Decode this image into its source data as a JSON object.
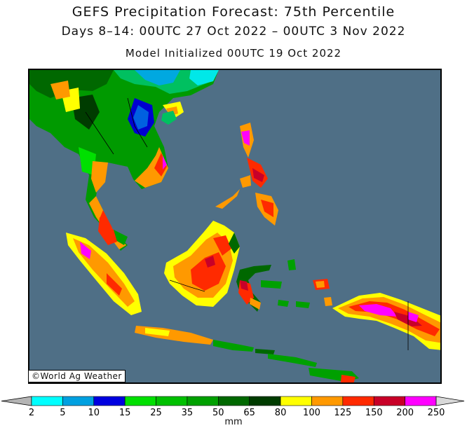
{
  "title": "GEFS Precipitation Forecast: 75th Percentile",
  "subtitle": "Days 8–14: 00UTC 27 Oct 2022 – 00UTC 3 Nov 2022",
  "init_line": "Model Initialized 00UTC 19 Oct 2022",
  "credit": "©World Ag Weather",
  "colorbar": {
    "unit": "mm",
    "labels": [
      "2",
      "5",
      "10",
      "15",
      "25",
      "35",
      "50",
      "65",
      "80",
      "100",
      "125",
      "150",
      "200",
      "250"
    ],
    "colors": [
      "#00ffff",
      "#00a0e0",
      "#0000e0",
      "#00e000",
      "#00c000",
      "#00a000",
      "#006800",
      "#003c00",
      "#ffff00",
      "#ff9900",
      "#ff2a00",
      "#c80028",
      "#ff00ff",
      "#9a3cc8"
    ],
    "under_color": "#b4b4b4",
    "over_color": "#d8d8d8"
  },
  "colors": {
    "ocean": "#4f6f86",
    "land_dry": "#4f6f86"
  }
}
